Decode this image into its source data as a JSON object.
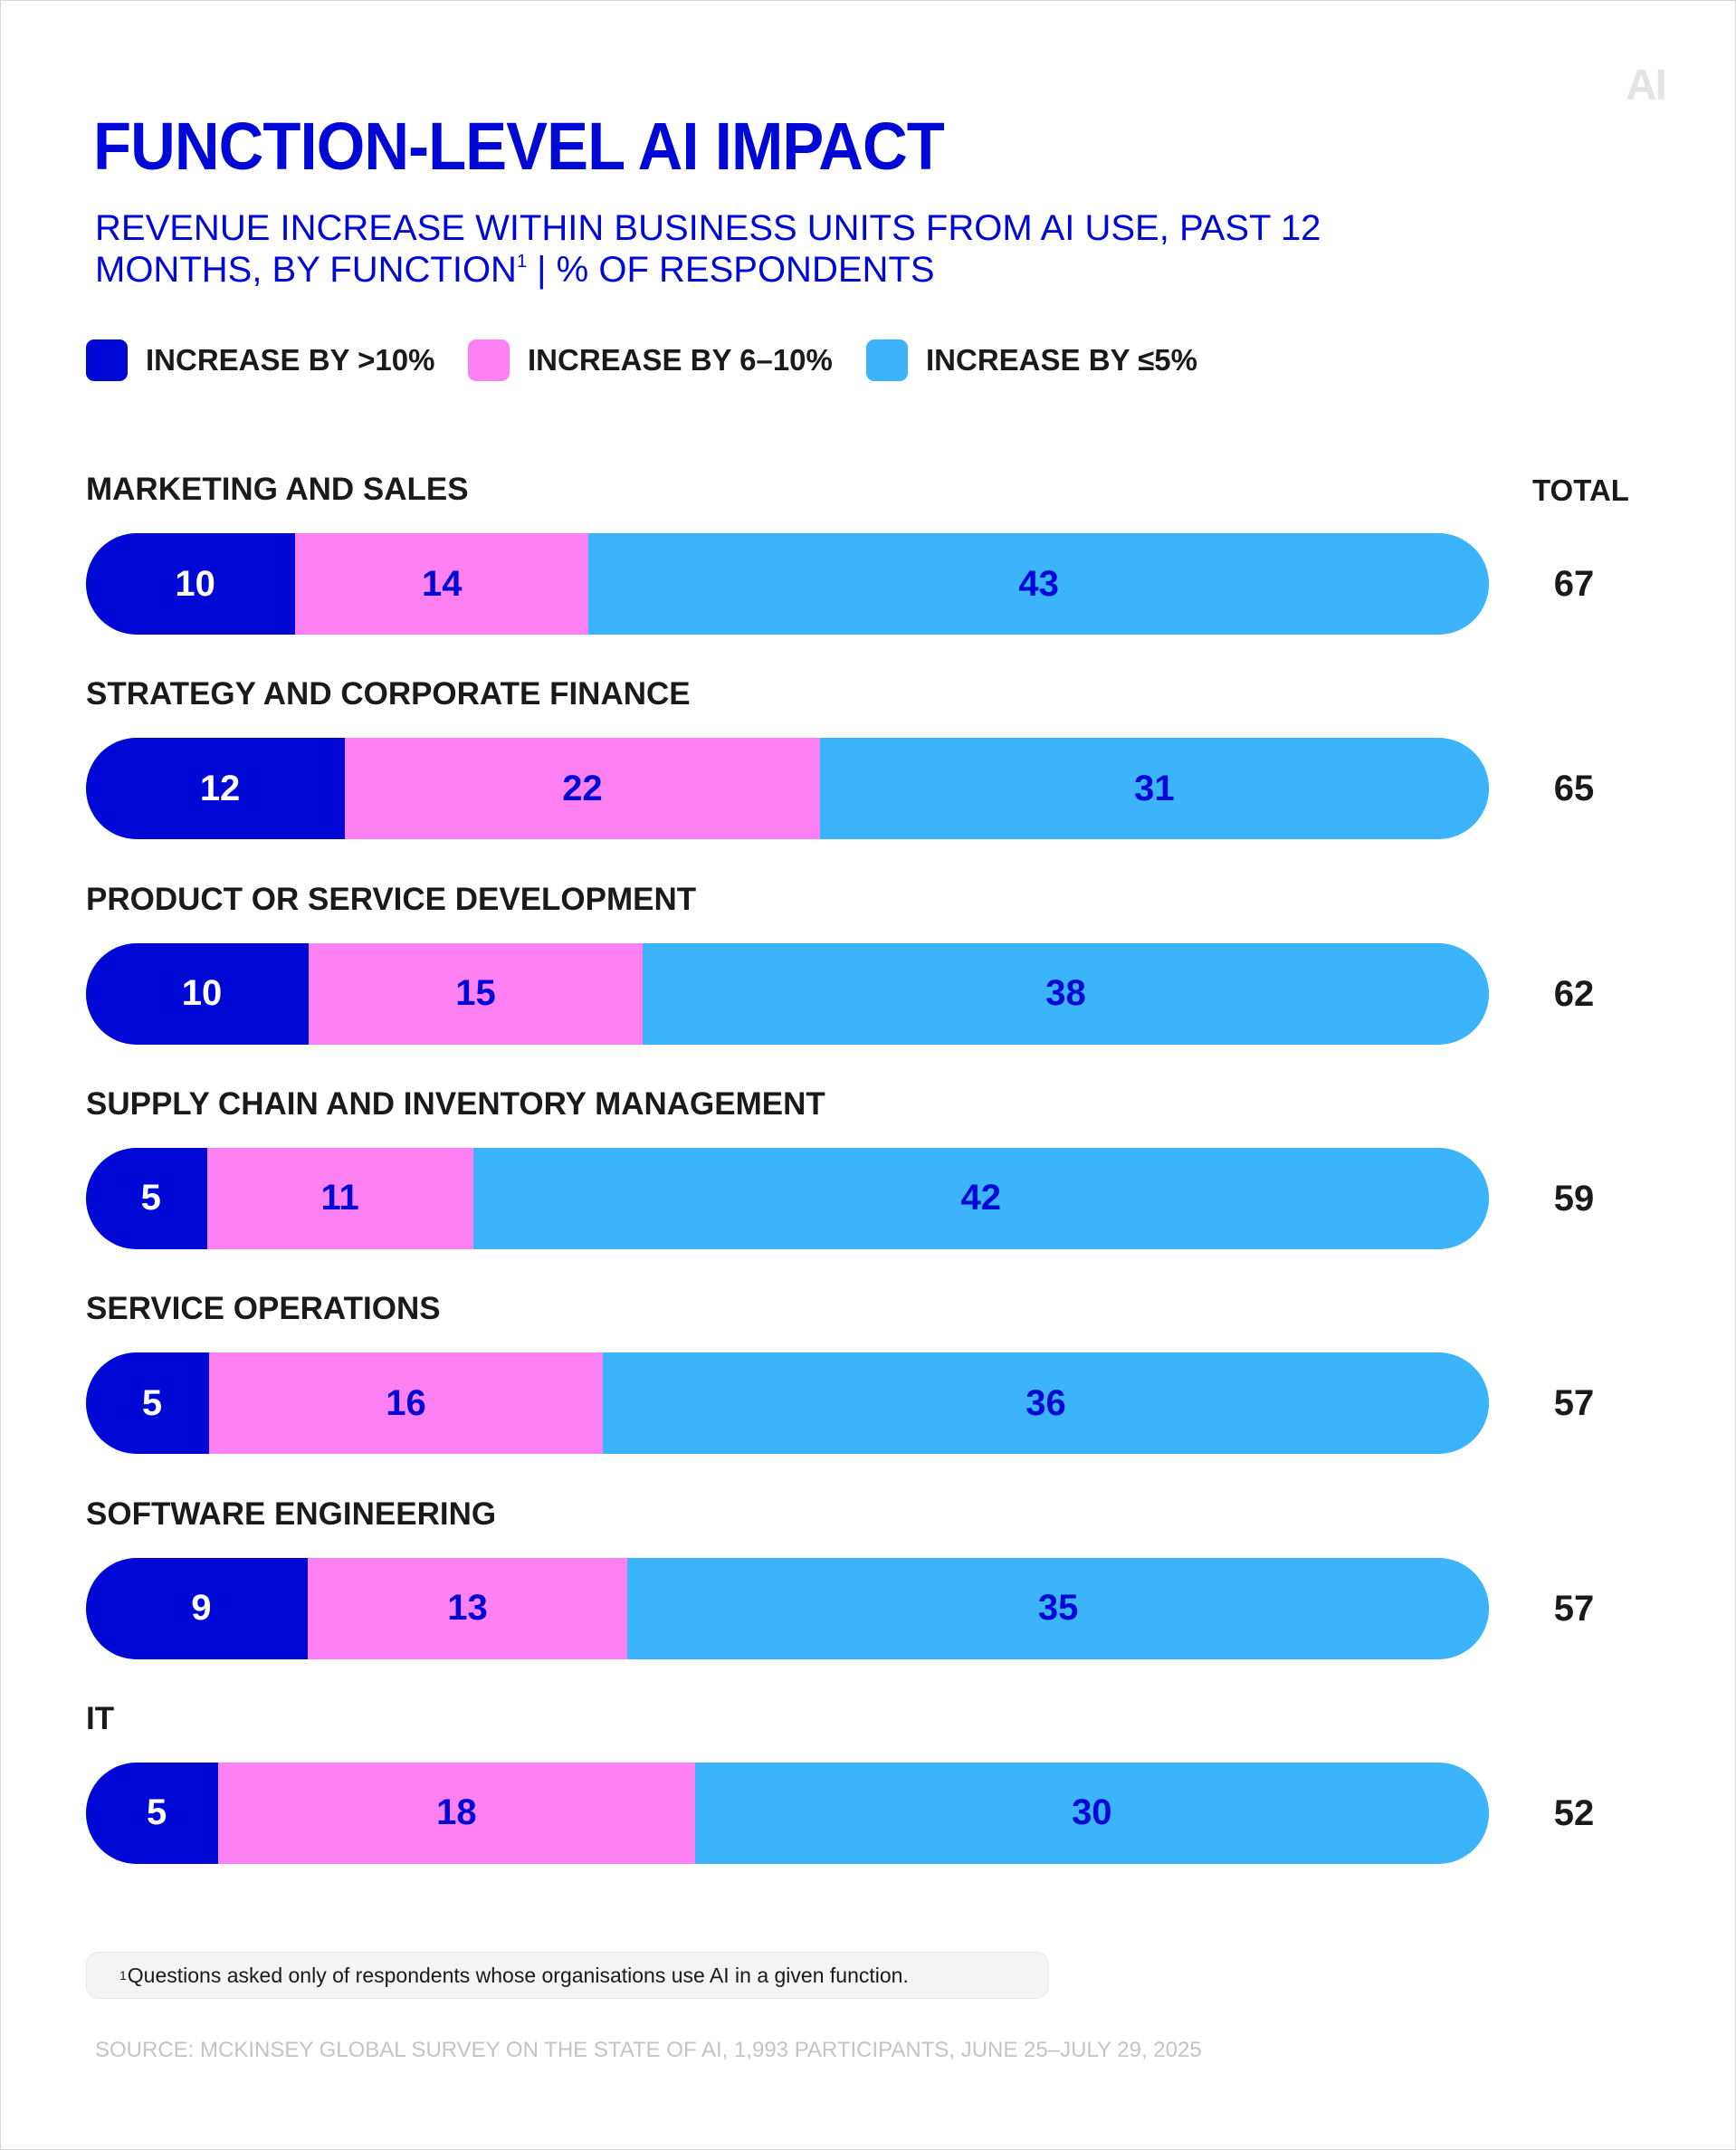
{
  "logo": {
    "text": "AI"
  },
  "header": {
    "title": "FUNCTION-LEVEL AI IMPACT",
    "subtitle_before": "REVENUE INCREASE WITHIN BUSINESS UNITS FROM AI USE, PAST 12 MONTHS, BY FUNCTION",
    "subtitle_marker": "1",
    "subtitle_after": " | % OF RESPONDENTS"
  },
  "colors": {
    "dark_blue": "#0008d6",
    "pink": "#ff80f2",
    "light_blue": "#3bb4fc"
  },
  "chart_data": {
    "type": "bar",
    "orientation": "horizontal",
    "stacked": true,
    "title": "FUNCTION-LEVEL AI IMPACT",
    "subtitle": "REVENUE INCREASE WITHIN BUSINESS UNITS FROM AI USE, PAST 12 MONTHS, BY FUNCTION¹ | % OF RESPONDENTS",
    "legend_position": "top-left",
    "grid": false,
    "total_label": "TOTAL",
    "categories": [
      "MARKETING AND SALES",
      "STRATEGY AND CORPORATE FINANCE",
      "PRODUCT OR SERVICE DEVELOPMENT",
      "SUPPLY CHAIN AND INVENTORY MANAGEMENT",
      "SERVICE OPERATIONS",
      "SOFTWARE ENGINEERING",
      "IT"
    ],
    "series": [
      {
        "name": "INCREASE BY >10%",
        "color": "#0008d6",
        "values": [
          10,
          12,
          10,
          5,
          5,
          9,
          5
        ]
      },
      {
        "name": "INCREASE BY 6–10%",
        "color": "#ff80f2",
        "values": [
          14,
          22,
          15,
          11,
          16,
          13,
          18
        ]
      },
      {
        "name": "INCREASE BY ≤5%",
        "color": "#3bb4fc",
        "values": [
          43,
          31,
          38,
          42,
          36,
          35,
          30
        ]
      }
    ],
    "totals": [
      67,
      65,
      62,
      59,
      57,
      57,
      52
    ]
  },
  "footnote": {
    "marker": "1",
    "text": "Questions asked only of respondents whose organisations use AI in a given function."
  },
  "source": "SOURCE: MCKINSEY GLOBAL SURVEY ON THE STATE OF AI, 1,993 PARTICIPANTS, JUNE 25–JULY 29, 2025"
}
